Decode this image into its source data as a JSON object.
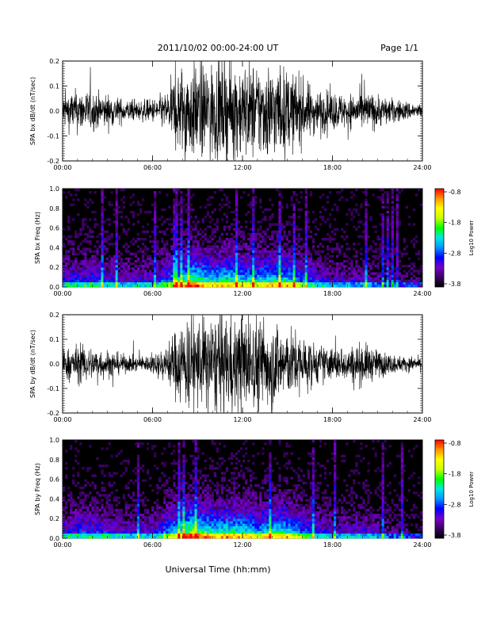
{
  "header": {
    "title": "2011/10/02  00:00-24:00 UT",
    "page": "Page 1/1"
  },
  "footer": {
    "xlabel": "Universal Time (hh:mm)"
  },
  "colorbar": {
    "label": "Log10 Power",
    "ticks": [
      "-0.8",
      "-1.8",
      "-2.8",
      "-3.8"
    ],
    "range": [
      -3.8,
      -0.8
    ],
    "colors": [
      "#000000",
      "#3c0064",
      "#7800c8",
      "#0000ff",
      "#0096ff",
      "#00e6e6",
      "#00ff00",
      "#c8ff00",
      "#ffff00",
      "#ff9600",
      "#ff0000"
    ]
  },
  "chart_data": [
    {
      "type": "line",
      "ylabel": "SPA bx dB/dt (nT/sec)",
      "yticks": [
        "0.2",
        "0.1",
        "0.0",
        "-0.1",
        "-0.2"
      ],
      "xticks": [
        "00:00",
        "06:00",
        "12:00",
        "18:00",
        "24:00"
      ],
      "xlim": [
        0,
        24
      ],
      "ylim": [
        -0.2,
        0.2
      ],
      "x_unit": "hours UT",
      "envelope": {
        "hours": [
          0,
          1,
          2,
          3,
          4,
          5,
          6,
          7,
          7.5,
          8,
          9,
          10,
          11,
          12,
          13,
          14,
          15,
          16,
          17,
          18,
          19,
          20,
          21,
          22,
          23,
          24
        ],
        "amplitude": [
          0.07,
          0.09,
          0.08,
          0.07,
          0.05,
          0.04,
          0.05,
          0.08,
          0.16,
          0.2,
          0.2,
          0.2,
          0.2,
          0.2,
          0.2,
          0.2,
          0.17,
          0.13,
          0.09,
          0.08,
          0.07,
          0.08,
          0.07,
          0.05,
          0.04,
          0.03
        ]
      }
    },
    {
      "type": "heatmap",
      "ylabel": "SPA bx Freq (Hz)",
      "yticks": [
        "1.0",
        "0.8",
        "0.6",
        "0.4",
        "0.2",
        "0.0"
      ],
      "xticks": [
        "00:00",
        "06:00",
        "12:00",
        "18:00",
        "24:00"
      ],
      "xlim": [
        0,
        24
      ],
      "ylim": [
        0,
        1
      ],
      "z_label": "Log10 Power",
      "zlim": [
        -3.8,
        -0.8
      ],
      "activity_hours": [
        0,
        2,
        4,
        6,
        8,
        8.5,
        9,
        10,
        11,
        12,
        13,
        14,
        15,
        16,
        18,
        20,
        22,
        24
      ],
      "activity_level": [
        0.35,
        0.4,
        0.3,
        0.3,
        0.7,
        0.85,
        0.75,
        0.65,
        0.7,
        0.65,
        0.6,
        0.7,
        0.65,
        0.45,
        0.25,
        0.25,
        0.15,
        0.1
      ]
    },
    {
      "type": "line",
      "ylabel": "SPA by dB/dt (nT/sec)",
      "yticks": [
        "0.2",
        "0.1",
        "0.0",
        "-0.1",
        "-0.2"
      ],
      "xticks": [
        "00:00",
        "06:00",
        "12:00",
        "18:00",
        "24:00"
      ],
      "xlim": [
        0,
        24
      ],
      "ylim": [
        -0.2,
        0.2
      ],
      "x_unit": "hours UT",
      "envelope": {
        "hours": [
          0,
          1,
          2,
          3,
          4,
          5,
          6,
          7,
          7.5,
          8,
          9,
          10,
          11,
          12,
          13,
          14,
          15,
          16,
          17,
          18,
          19,
          20,
          21,
          22,
          23,
          24
        ],
        "amplitude": [
          0.06,
          0.08,
          0.07,
          0.06,
          0.04,
          0.03,
          0.04,
          0.08,
          0.14,
          0.2,
          0.2,
          0.2,
          0.2,
          0.2,
          0.2,
          0.19,
          0.15,
          0.12,
          0.08,
          0.07,
          0.07,
          0.09,
          0.06,
          0.04,
          0.03,
          0.03
        ]
      }
    },
    {
      "type": "heatmap",
      "ylabel": "SPA by Freq (Hz)",
      "yticks": [
        "1.0",
        "0.8",
        "0.6",
        "0.4",
        "0.2",
        "0.0"
      ],
      "xticks": [
        "00:00",
        "06:00",
        "12:00",
        "18:00",
        "24:00"
      ],
      "xlim": [
        0,
        24
      ],
      "ylim": [
        0,
        1
      ],
      "z_label": "Log10 Power",
      "zlim": [
        -3.8,
        -0.8
      ],
      "activity_hours": [
        0,
        2,
        4,
        6,
        8,
        8.5,
        9,
        10,
        11,
        12,
        13,
        14,
        15,
        16,
        18,
        20,
        22,
        24
      ],
      "activity_level": [
        0.35,
        0.4,
        0.3,
        0.3,
        0.75,
        0.9,
        0.8,
        0.7,
        0.7,
        0.7,
        0.6,
        0.7,
        0.65,
        0.45,
        0.25,
        0.3,
        0.15,
        0.1
      ]
    }
  ]
}
